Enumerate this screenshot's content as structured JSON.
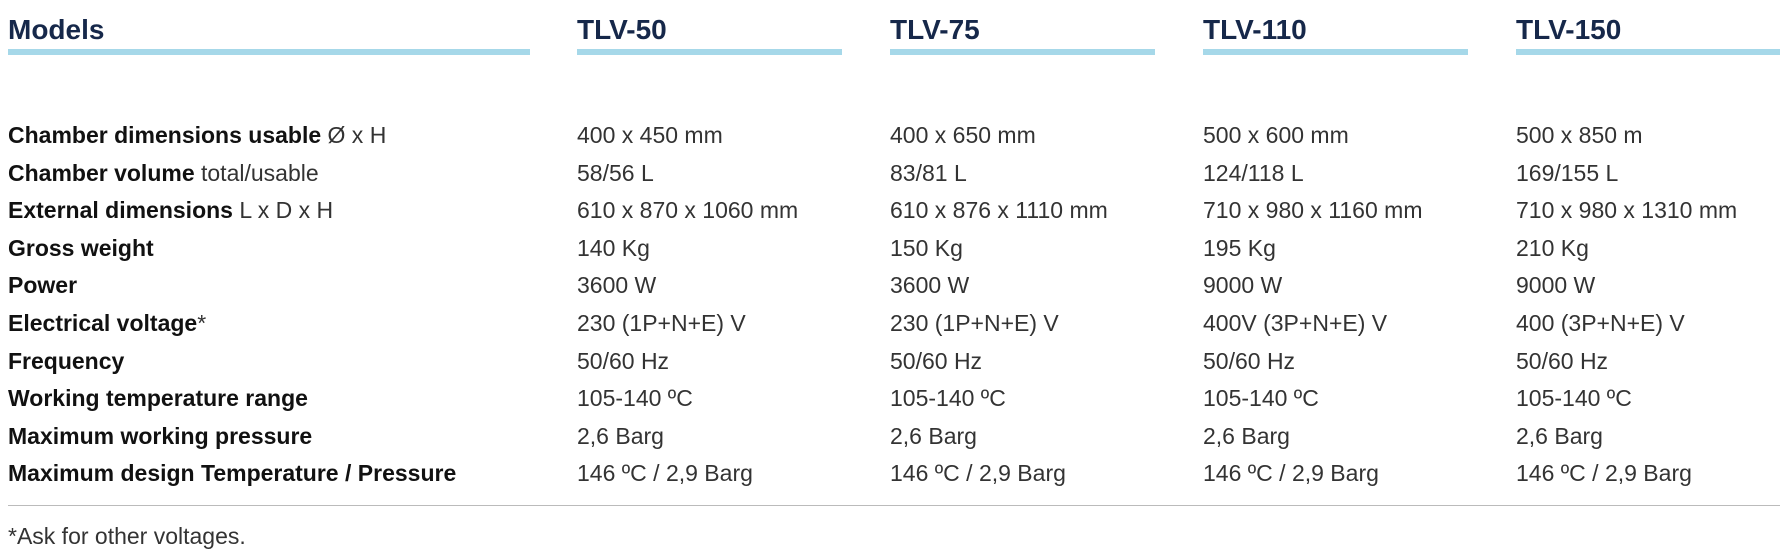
{
  "header": {
    "models": "Models",
    "columns": [
      "TLV-50",
      "TLV-75",
      "TLV-110",
      "TLV-150"
    ]
  },
  "rows": [
    {
      "label": "Chamber dimensions usable",
      "suffix": "Ø x H",
      "values": [
        "400 x 450 mm",
        "400 x 650 mm",
        "500 x 600 mm",
        "500 x 850 m"
      ]
    },
    {
      "label": "Chamber volume",
      "suffix": "total/usable",
      "values": [
        "58/56 L",
        "83/81 L",
        "124/118 L",
        "169/155 L"
      ]
    },
    {
      "label": "External dimensions",
      "suffix": "L x D x H",
      "values": [
        "610 x 870 x 1060 mm",
        "610 x 876 x 1110 mm",
        "710 x 980 x 1160 mm",
        "710 x 980 x 1310 mm"
      ]
    },
    {
      "label": "Gross weight",
      "values": [
        "140 Kg",
        "150 Kg",
        "195 Kg",
        "210 Kg"
      ]
    },
    {
      "label": "Power",
      "values": [
        "3600 W",
        "3600 W",
        "9000 W",
        "9000 W"
      ]
    },
    {
      "label": "Electrical voltage",
      "suffix": "*",
      "values": [
        "230 (1P+N+E) V",
        "230 (1P+N+E) V",
        "400V (3P+N+E) V",
        "400 (3P+N+E) V"
      ]
    },
    {
      "label": "Frequency",
      "values": [
        "50/60 Hz",
        "50/60 Hz",
        "50/60 Hz",
        "50/60 Hz"
      ]
    },
    {
      "label": "Working temperature range",
      "values": [
        "105-140 ºC",
        "105-140 ºC",
        "105-140 ºC",
        "105-140 ºC"
      ]
    },
    {
      "label": "Maximum working pressure",
      "values": [
        "2,6 Barg",
        "2,6 Barg",
        "2,6 Barg",
        "2,6 Barg"
      ]
    },
    {
      "label": "Maximum design Temperature / Pressure",
      "values": [
        "146 ºC / 2,9 Barg",
        "146 ºC / 2,9 Barg",
        "146 ºC / 2,9 Barg",
        "146 ºC / 2,9 Barg"
      ]
    }
  ],
  "footnote": "*Ask for other voltages."
}
